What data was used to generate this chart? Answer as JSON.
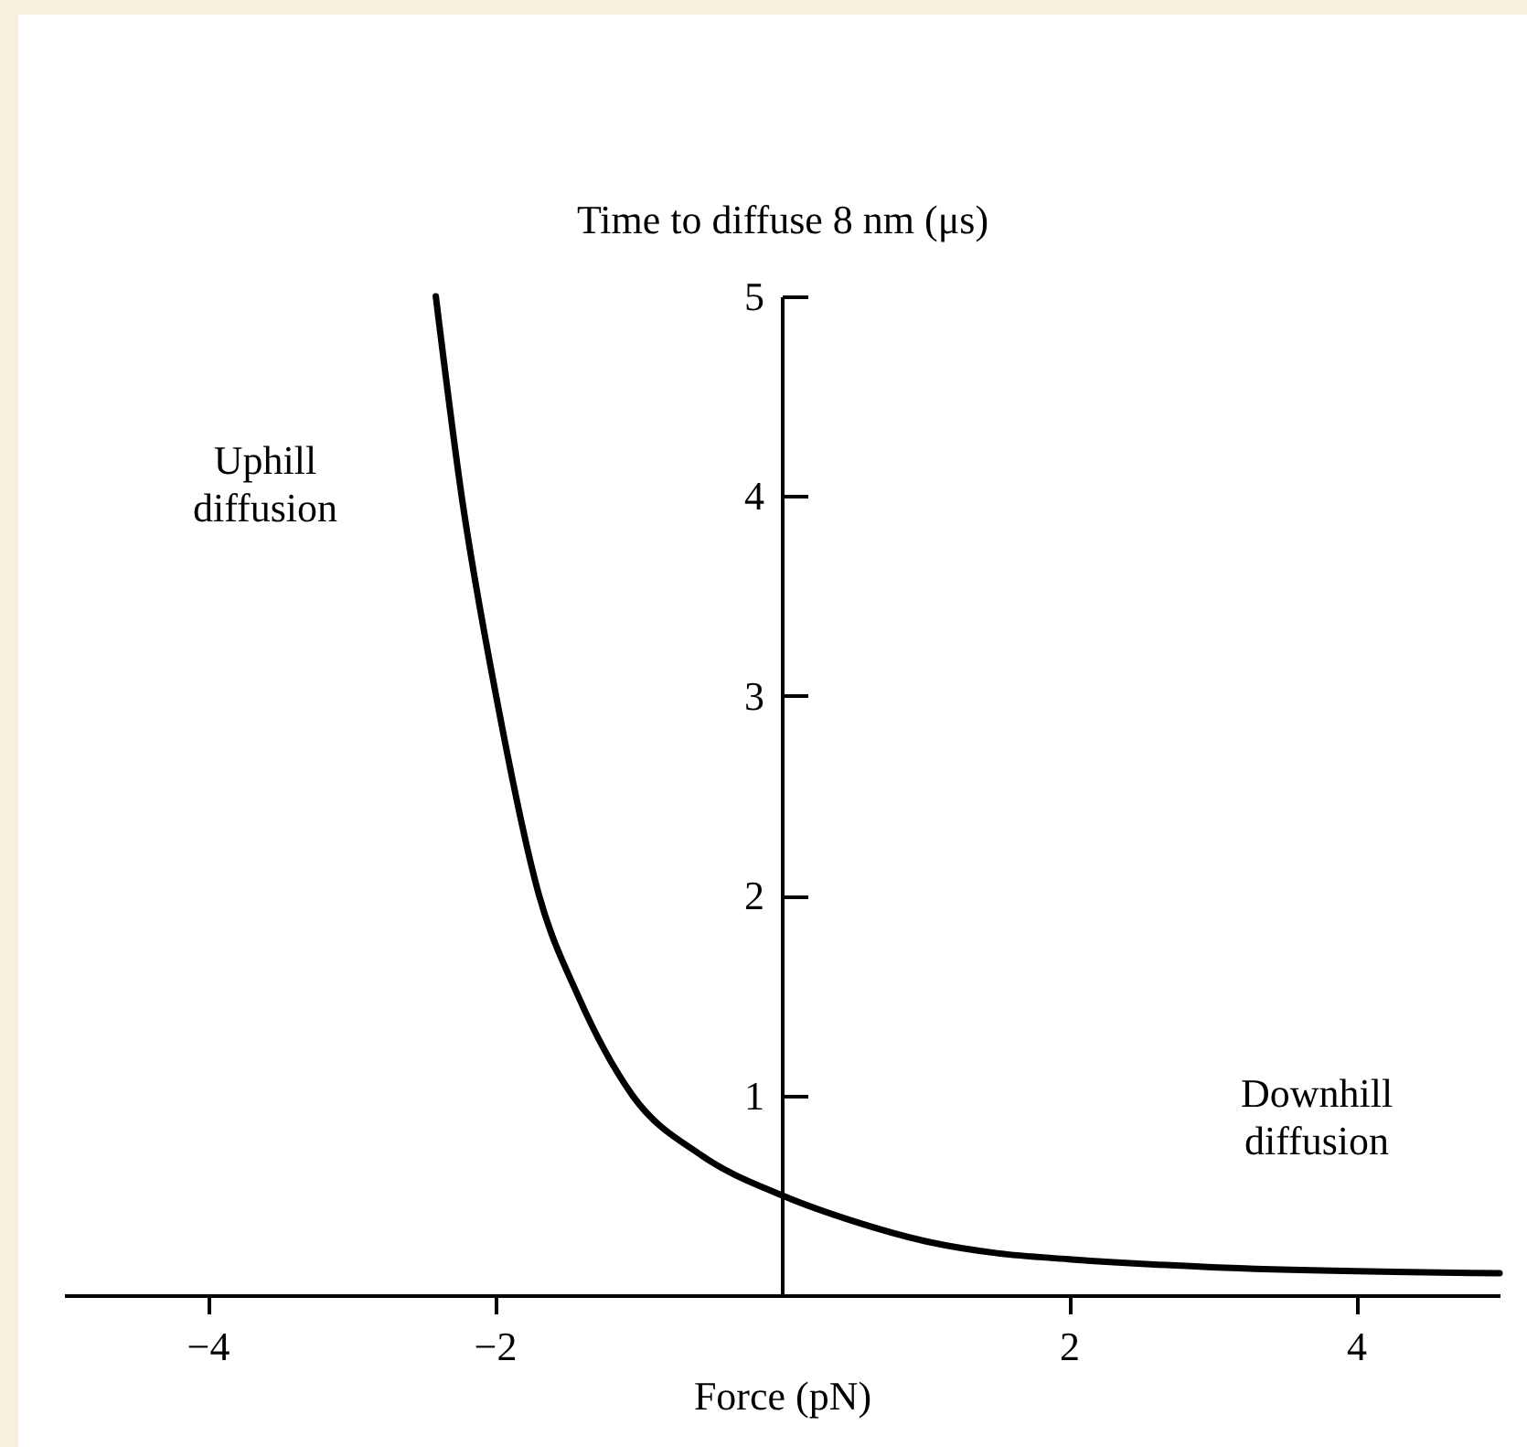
{
  "chart_data": {
    "type": "line",
    "xlabel": "Force (pN)",
    "ylabel": "Time to diffuse 8 nm (μs)",
    "x": [
      -2.41,
      -2.23,
      -1.99,
      -1.69,
      -1.42,
      -1.04,
      -0.56,
      0,
      0.5,
      1,
      1.5,
      2,
      3,
      4,
      5
    ],
    "series": [
      {
        "color": "#000000",
        "values": [
          5,
          4,
          3,
          2,
          1.5,
          1,
          0.7,
          0.5,
          0.37,
          0.27,
          0.21,
          0.18,
          0.14,
          0.12,
          0.11
        ]
      }
    ],
    "xlim": [
      -5,
      5
    ],
    "xticks": [
      -4,
      -2,
      2,
      4
    ],
    "ylim": [
      0,
      5
    ],
    "yticks": [
      1,
      2,
      3,
      4,
      5
    ],
    "grid": false,
    "marker": "none",
    "line_style": "solid",
    "annotations": [
      "Uphill diffusion",
      "Downhill diffusion"
    ]
  }
}
